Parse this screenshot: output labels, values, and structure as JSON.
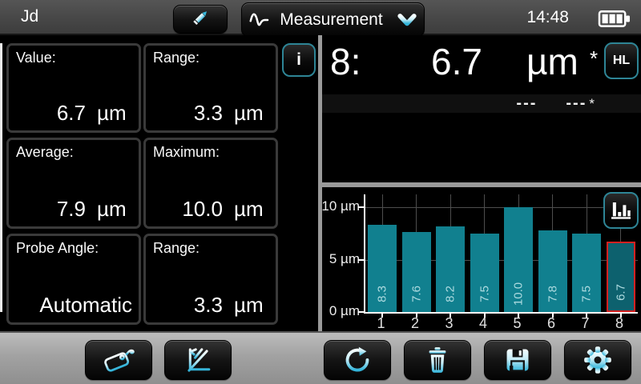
{
  "header": {
    "title": "Jd",
    "clock": "14:48",
    "mode_dropdown": {
      "label": "Measurement"
    },
    "battery_level_bars": 3
  },
  "stats_panels": [
    {
      "label": "Value:",
      "value": "6.7",
      "unit": "µm"
    },
    {
      "label": "Range:",
      "value": "3.3",
      "unit": "µm"
    },
    {
      "label": "Average:",
      "value": "7.9",
      "unit": "µm"
    },
    {
      "label": "Maximum:",
      "value": "10.0",
      "unit": "µm"
    },
    {
      "label": "Probe Angle:",
      "value": "Automatic",
      "unit": ""
    },
    {
      "label": "Range:",
      "value": "3.3",
      "unit": "µm"
    }
  ],
  "info_button_label": "i",
  "reading": {
    "index_label": "8:",
    "value": "6.7",
    "unit": "µm",
    "flag": "*",
    "hl_button_label": "HL",
    "secondary_left": "---",
    "secondary_right": "---",
    "secondary_flag": "*"
  },
  "chart_data": {
    "type": "bar",
    "categories": [
      "1",
      "2",
      "3",
      "4",
      "5",
      "6",
      "7",
      "8"
    ],
    "values": [
      8.3,
      7.6,
      8.2,
      7.5,
      10.0,
      7.8,
      7.5,
      6.7
    ],
    "bar_labels": [
      "8.3",
      "7.6",
      "8.2",
      "7.5",
      "10.0",
      "7.8",
      "7.5",
      "6.7"
    ],
    "highlighted_index": 7,
    "unit": "µm",
    "ylim": [
      0,
      10
    ],
    "yticks": [
      {
        "value": 0,
        "label": "0 µm"
      },
      {
        "value": 5,
        "label": "5 µm"
      },
      {
        "value": 10,
        "label": "10 µm"
      }
    ],
    "grid": true,
    "legend": "none",
    "bar_color": "#11808f",
    "highlight_fill": "#0d616e",
    "highlight_border": "#d42020",
    "bar_label_color": "#aedbe0"
  },
  "icons": {
    "edit": "pencil-icon",
    "mode": "waveform-icon",
    "dropdown": "chevron-down-icon",
    "status": "battery-icon",
    "info": "info-icon",
    "chart_mode": "histogram-icon",
    "toolbar": [
      "tag-icon",
      "calibration-icon",
      "repeat-icon",
      "trash-icon",
      "save-icon",
      "gear-icon"
    ]
  },
  "colors": {
    "accent": "#41c3e3",
    "panel_border": "#3a3a3a",
    "divider": "#9a9a9a",
    "topbar": "#4a4a4a",
    "toolbar": "#a3a3a3"
  }
}
